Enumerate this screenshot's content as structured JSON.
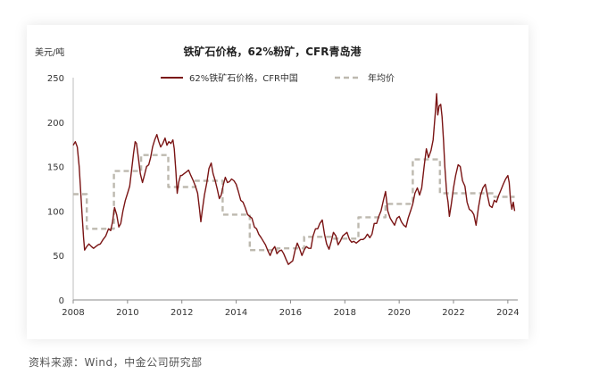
{
  "chart_data": {
    "type": "line",
    "title": "铁矿石价格，62%粉矿，CFR青岛港",
    "ylabel": "美元/吨",
    "xlabel": "",
    "ylim": [
      0,
      250
    ],
    "xlim": [
      2008,
      2024.3
    ],
    "yticks": [
      0,
      50,
      100,
      150,
      200,
      250
    ],
    "xticks": [
      2008,
      2010,
      2012,
      2014,
      2016,
      2018,
      2020,
      2022,
      2024
    ],
    "legend": {
      "placement": "top",
      "entries": [
        "62%铁矿石价格，CFR中国",
        "年均价"
      ]
    },
    "series": [
      {
        "name": "62%铁矿石价格，CFR中国",
        "style": "line",
        "color": "#7a1414",
        "points": [
          [
            2008.0,
            174
          ],
          [
            2008.08,
            178
          ],
          [
            2008.15,
            172
          ],
          [
            2008.22,
            150
          ],
          [
            2008.28,
            120
          ],
          [
            2008.33,
            95
          ],
          [
            2008.38,
            70
          ],
          [
            2008.42,
            56
          ],
          [
            2008.5,
            60
          ],
          [
            2008.58,
            63
          ],
          [
            2008.67,
            60
          ],
          [
            2008.75,
            58
          ],
          [
            2008.83,
            60
          ],
          [
            2008.92,
            62
          ],
          [
            2009.0,
            63
          ],
          [
            2009.1,
            68
          ],
          [
            2009.2,
            72
          ],
          [
            2009.3,
            80
          ],
          [
            2009.38,
            78
          ],
          [
            2009.45,
            88
          ],
          [
            2009.52,
            104
          ],
          [
            2009.6,
            96
          ],
          [
            2009.68,
            82
          ],
          [
            2009.75,
            86
          ],
          [
            2009.83,
            100
          ],
          [
            2009.92,
            112
          ],
          [
            2010.0,
            120
          ],
          [
            2010.08,
            128
          ],
          [
            2010.15,
            146
          ],
          [
            2010.22,
            165
          ],
          [
            2010.28,
            178
          ],
          [
            2010.33,
            176
          ],
          [
            2010.4,
            160
          ],
          [
            2010.47,
            142
          ],
          [
            2010.55,
            132
          ],
          [
            2010.62,
            140
          ],
          [
            2010.7,
            150
          ],
          [
            2010.78,
            152
          ],
          [
            2010.85,
            160
          ],
          [
            2010.92,
            172
          ],
          [
            2011.0,
            180
          ],
          [
            2011.08,
            186
          ],
          [
            2011.15,
            178
          ],
          [
            2011.22,
            172
          ],
          [
            2011.3,
            176
          ],
          [
            2011.38,
            182
          ],
          [
            2011.45,
            174
          ],
          [
            2011.52,
            178
          ],
          [
            2011.6,
            176
          ],
          [
            2011.67,
            180
          ],
          [
            2011.72,
            170
          ],
          [
            2011.78,
            145
          ],
          [
            2011.83,
            120
          ],
          [
            2011.88,
            132
          ],
          [
            2011.95,
            140
          ],
          [
            2012.0,
            140
          ],
          [
            2012.08,
            142
          ],
          [
            2012.17,
            144
          ],
          [
            2012.25,
            146
          ],
          [
            2012.33,
            140
          ],
          [
            2012.42,
            134
          ],
          [
            2012.5,
            128
          ],
          [
            2012.58,
            120
          ],
          [
            2012.65,
            102
          ],
          [
            2012.7,
            88
          ],
          [
            2012.75,
            100
          ],
          [
            2012.83,
            118
          ],
          [
            2012.92,
            132
          ],
          [
            2013.0,
            148
          ],
          [
            2013.08,
            154
          ],
          [
            2013.15,
            142
          ],
          [
            2013.23,
            134
          ],
          [
            2013.3,
            125
          ],
          [
            2013.38,
            114
          ],
          [
            2013.45,
            118
          ],
          [
            2013.53,
            130
          ],
          [
            2013.6,
            138
          ],
          [
            2013.68,
            132
          ],
          [
            2013.75,
            133
          ],
          [
            2013.83,
            136
          ],
          [
            2013.92,
            134
          ],
          [
            2014.0,
            130
          ],
          [
            2014.08,
            122
          ],
          [
            2014.17,
            112
          ],
          [
            2014.25,
            110
          ],
          [
            2014.33,
            104
          ],
          [
            2014.42,
            96
          ],
          [
            2014.5,
            94
          ],
          [
            2014.58,
            92
          ],
          [
            2014.67,
            82
          ],
          [
            2014.75,
            80
          ],
          [
            2014.83,
            74
          ],
          [
            2014.92,
            70
          ],
          [
            2015.0,
            66
          ],
          [
            2015.08,
            62
          ],
          [
            2015.17,
            55
          ],
          [
            2015.25,
            50
          ],
          [
            2015.33,
            56
          ],
          [
            2015.42,
            60
          ],
          [
            2015.5,
            52
          ],
          [
            2015.58,
            55
          ],
          [
            2015.67,
            56
          ],
          [
            2015.75,
            52
          ],
          [
            2015.83,
            46
          ],
          [
            2015.92,
            40
          ],
          [
            2016.0,
            42
          ],
          [
            2016.08,
            44
          ],
          [
            2016.17,
            56
          ],
          [
            2016.25,
            64
          ],
          [
            2016.33,
            58
          ],
          [
            2016.42,
            50
          ],
          [
            2016.5,
            56
          ],
          [
            2016.58,
            60
          ],
          [
            2016.67,
            58
          ],
          [
            2016.75,
            58
          ],
          [
            2016.83,
            72
          ],
          [
            2016.92,
            80
          ],
          [
            2017.0,
            80
          ],
          [
            2017.08,
            86
          ],
          [
            2017.17,
            90
          ],
          [
            2017.25,
            74
          ],
          [
            2017.33,
            63
          ],
          [
            2017.42,
            57
          ],
          [
            2017.5,
            66
          ],
          [
            2017.58,
            76
          ],
          [
            2017.67,
            72
          ],
          [
            2017.75,
            62
          ],
          [
            2017.83,
            66
          ],
          [
            2017.92,
            72
          ],
          [
            2018.0,
            74
          ],
          [
            2018.08,
            76
          ],
          [
            2018.17,
            68
          ],
          [
            2018.25,
            65
          ],
          [
            2018.33,
            66
          ],
          [
            2018.42,
            64
          ],
          [
            2018.5,
            66
          ],
          [
            2018.58,
            68
          ],
          [
            2018.67,
            68
          ],
          [
            2018.75,
            70
          ],
          [
            2018.83,
            74
          ],
          [
            2018.92,
            70
          ],
          [
            2019.0,
            74
          ],
          [
            2019.08,
            86
          ],
          [
            2019.17,
            86
          ],
          [
            2019.25,
            94
          ],
          [
            2019.33,
            100
          ],
          [
            2019.42,
            112
          ],
          [
            2019.5,
            122
          ],
          [
            2019.58,
            100
          ],
          [
            2019.67,
            92
          ],
          [
            2019.75,
            88
          ],
          [
            2019.83,
            84
          ],
          [
            2019.92,
            92
          ],
          [
            2020.0,
            94
          ],
          [
            2020.08,
            88
          ],
          [
            2020.17,
            84
          ],
          [
            2020.25,
            82
          ],
          [
            2020.33,
            92
          ],
          [
            2020.42,
            100
          ],
          [
            2020.5,
            108
          ],
          [
            2020.58,
            120
          ],
          [
            2020.67,
            126
          ],
          [
            2020.75,
            118
          ],
          [
            2020.83,
            126
          ],
          [
            2020.92,
            150
          ],
          [
            2021.0,
            170
          ],
          [
            2021.08,
            160
          ],
          [
            2021.17,
            168
          ],
          [
            2021.25,
            180
          ],
          [
            2021.33,
            210
          ],
          [
            2021.38,
            232
          ],
          [
            2021.42,
            208
          ],
          [
            2021.47,
            218
          ],
          [
            2021.53,
            220
          ],
          [
            2021.58,
            206
          ],
          [
            2021.63,
            180
          ],
          [
            2021.68,
            150
          ],
          [
            2021.75,
            120
          ],
          [
            2021.8,
            110
          ],
          [
            2021.85,
            94
          ],
          [
            2021.92,
            108
          ],
          [
            2022.0,
            126
          ],
          [
            2022.08,
            140
          ],
          [
            2022.17,
            152
          ],
          [
            2022.25,
            150
          ],
          [
            2022.33,
            134
          ],
          [
            2022.42,
            128
          ],
          [
            2022.5,
            110
          ],
          [
            2022.58,
            102
          ],
          [
            2022.67,
            100
          ],
          [
            2022.75,
            96
          ],
          [
            2022.83,
            84
          ],
          [
            2022.92,
            104
          ],
          [
            2023.0,
            118
          ],
          [
            2023.08,
            126
          ],
          [
            2023.17,
            130
          ],
          [
            2023.25,
            118
          ],
          [
            2023.33,
            106
          ],
          [
            2023.42,
            104
          ],
          [
            2023.5,
            112
          ],
          [
            2023.58,
            110
          ],
          [
            2023.67,
            118
          ],
          [
            2023.75,
            124
          ],
          [
            2023.83,
            130
          ],
          [
            2023.92,
            136
          ],
          [
            2024.0,
            140
          ],
          [
            2024.05,
            132
          ],
          [
            2024.1,
            112
          ],
          [
            2024.15,
            102
          ],
          [
            2024.2,
            110
          ],
          [
            2024.25,
            100
          ]
        ]
      },
      {
        "name": "年均价",
        "style": "step-dashed",
        "color": "#bdb9af",
        "points": [
          [
            2008,
            119
          ],
          [
            2008.5,
            119
          ],
          [
            2008.5,
            80
          ],
          [
            2009.5,
            80
          ],
          [
            2009.5,
            145
          ],
          [
            2010.5,
            145
          ],
          [
            2010.5,
            163
          ],
          [
            2011.5,
            163
          ],
          [
            2011.5,
            127
          ],
          [
            2012.5,
            127
          ],
          [
            2012.5,
            134
          ],
          [
            2013.5,
            134
          ],
          [
            2013.5,
            96
          ],
          [
            2014.5,
            96
          ],
          [
            2014.5,
            56
          ],
          [
            2015.5,
            56
          ],
          [
            2015.5,
            58
          ],
          [
            2016.5,
            58
          ],
          [
            2016.5,
            71
          ],
          [
            2017.5,
            71
          ],
          [
            2017.5,
            69
          ],
          [
            2018.5,
            69
          ],
          [
            2018.5,
            93
          ],
          [
            2019.5,
            93
          ],
          [
            2019.5,
            108
          ],
          [
            2020.5,
            108
          ],
          [
            2020.5,
            158
          ],
          [
            2021.5,
            158
          ],
          [
            2021.5,
            120
          ],
          [
            2022.5,
            120
          ],
          [
            2022.5,
            120
          ],
          [
            2023.5,
            120
          ],
          [
            2023.5,
            116
          ],
          [
            2024.25,
            116
          ]
        ]
      }
    ]
  },
  "source": "资料来源：Wind，中金公司研究部"
}
